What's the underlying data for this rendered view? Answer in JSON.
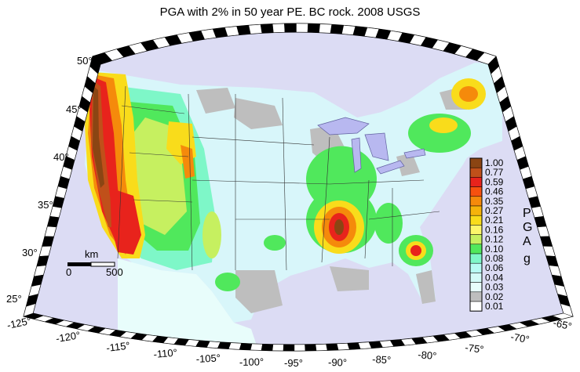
{
  "title": "PGA with 2% in 50 year PE. BC rock. 2008 USGS",
  "latitude_labels": [
    "50°",
    "45°",
    "40°",
    "35°",
    "30°",
    "25°"
  ],
  "longitude_labels": [
    "-125°",
    "-120°",
    "-115°",
    "-110°",
    "-105°",
    "-100°",
    "-95°",
    "-90°",
    "-85°",
    "-80°",
    "-75°",
    "-70°",
    "-65°"
  ],
  "scale_bar": {
    "unit": "km",
    "start": "0",
    "end": "500"
  },
  "legend": {
    "axis_title_letters": [
      "P",
      "G",
      "A"
    ],
    "unit": "g",
    "levels": [
      {
        "value": "1.00",
        "color": "#8b4513"
      },
      {
        "value": "0.77",
        "color": "#c0501a"
      },
      {
        "value": "0.59",
        "color": "#e8231c"
      },
      {
        "value": "0.46",
        "color": "#f7510f"
      },
      {
        "value": "0.35",
        "color": "#f58a0b"
      },
      {
        "value": "0.27",
        "color": "#f5b30b"
      },
      {
        "value": "0.21",
        "color": "#f9dc1b"
      },
      {
        "value": "0.16",
        "color": "#fdf66a"
      },
      {
        "value": "0.12",
        "color": "#c6f060"
      },
      {
        "value": "0.10",
        "color": "#50e85c"
      },
      {
        "value": "0.08",
        "color": "#7ef7c8"
      },
      {
        "value": "0.06",
        "color": "#b7fbf3"
      },
      {
        "value": "0.04",
        "color": "#d4fbf8"
      },
      {
        "value": "0.03",
        "color": "#e8fdfb"
      },
      {
        "value": "0.02",
        "color": "#bebebe"
      },
      {
        "value": "0.01",
        "color": "#ffffff"
      }
    ]
  },
  "colors": {
    "ocean": "#dcdcf4",
    "land_base": "#d8f6fa",
    "frame_black": "#000000",
    "frame_white": "#ffffff"
  }
}
